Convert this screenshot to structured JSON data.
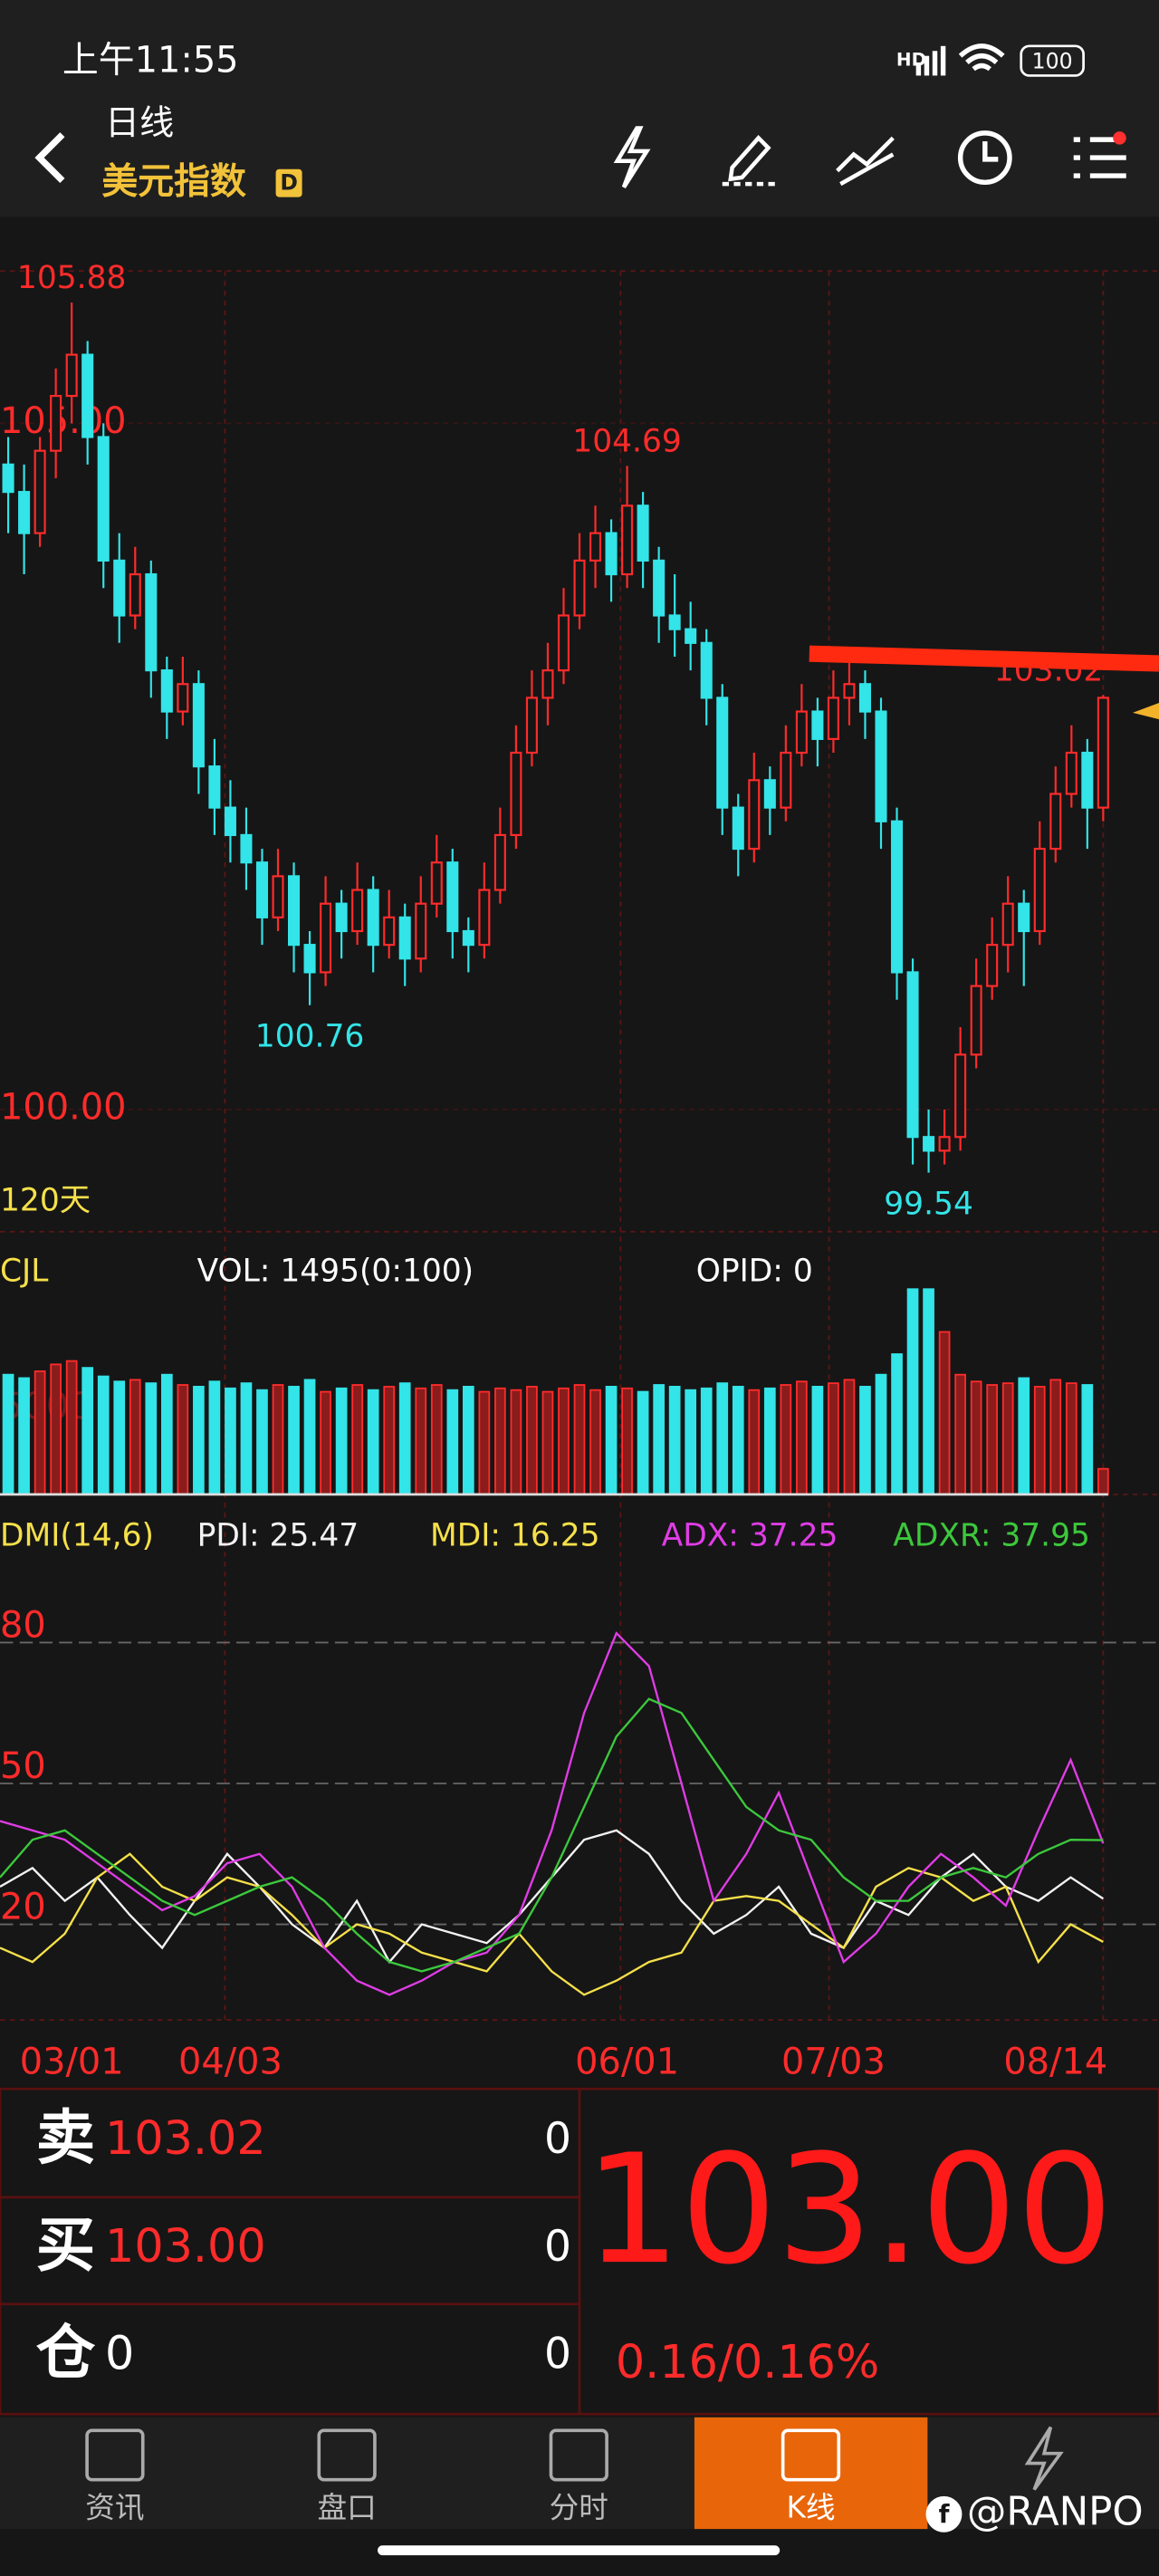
{
  "status_bar": {
    "time": "上午11:55",
    "battery": "100"
  },
  "header": {
    "title": "日线",
    "subtitle": "美元指数",
    "badge": "D"
  },
  "chart_data": [
    {
      "type": "candlestick",
      "period_label": "120天",
      "up_color": "#ff2b2b",
      "down_color": "#33e4e8",
      "categories": [
        null,
        null,
        null,
        null,
        "03/01",
        null,
        null,
        null,
        null,
        null,
        null,
        null,
        null,
        null,
        "04/03",
        null,
        null,
        null,
        null,
        null,
        null,
        null,
        null,
        null,
        null,
        null,
        null,
        null,
        null,
        null,
        null,
        null,
        null,
        null,
        null,
        null,
        null,
        null,
        null,
        "06/01",
        null,
        null,
        null,
        null,
        null,
        null,
        null,
        null,
        null,
        null,
        null,
        null,
        "07/03",
        null,
        null,
        null,
        null,
        null,
        null,
        null,
        null,
        null,
        null,
        null,
        null,
        null,
        "08/14",
        null,
        null,
        null
      ],
      "ohlc": [
        [
          104.7,
          104.9,
          104.2,
          104.5
        ],
        [
          104.5,
          104.7,
          103.9,
          104.2
        ],
        [
          104.2,
          104.9,
          104.1,
          104.8
        ],
        [
          104.8,
          105.4,
          104.6,
          105.2
        ],
        [
          105.2,
          105.88,
          105.0,
          105.5
        ],
        [
          105.5,
          105.6,
          104.7,
          104.9
        ],
        [
          104.9,
          105.0,
          103.8,
          104.0
        ],
        [
          104.0,
          104.2,
          103.4,
          103.6
        ],
        [
          103.6,
          104.1,
          103.5,
          103.9
        ],
        [
          103.9,
          104.0,
          103.0,
          103.2
        ],
        [
          103.2,
          103.3,
          102.7,
          102.9
        ],
        [
          102.9,
          103.3,
          102.8,
          103.1
        ],
        [
          103.1,
          103.2,
          102.3,
          102.5
        ],
        [
          102.5,
          102.7,
          102.0,
          102.2
        ],
        [
          102.2,
          102.4,
          101.8,
          102.0
        ],
        [
          102.0,
          102.2,
          101.6,
          101.8
        ],
        [
          101.8,
          101.9,
          101.2,
          101.4
        ],
        [
          101.4,
          101.9,
          101.3,
          101.7
        ],
        [
          101.7,
          101.8,
          101.0,
          101.2
        ],
        [
          101.2,
          101.3,
          100.76,
          101.0
        ],
        [
          101.0,
          101.7,
          100.9,
          101.5
        ],
        [
          101.5,
          101.6,
          101.1,
          101.3
        ],
        [
          101.3,
          101.8,
          101.2,
          101.6
        ],
        [
          101.6,
          101.7,
          101.0,
          101.2
        ],
        [
          101.2,
          101.6,
          101.1,
          101.4
        ],
        [
          101.4,
          101.5,
          100.9,
          101.1
        ],
        [
          101.1,
          101.7,
          101.0,
          101.5
        ],
        [
          101.5,
          102.0,
          101.4,
          101.8
        ],
        [
          101.8,
          101.9,
          101.1,
          101.3
        ],
        [
          101.3,
          101.4,
          101.0,
          101.2
        ],
        [
          101.2,
          101.8,
          101.1,
          101.6
        ],
        [
          101.6,
          102.2,
          101.5,
          102.0
        ],
        [
          102.0,
          102.8,
          101.9,
          102.6
        ],
        [
          102.6,
          103.2,
          102.5,
          103.0
        ],
        [
          103.0,
          103.4,
          102.8,
          103.2
        ],
        [
          103.2,
          103.8,
          103.1,
          103.6
        ],
        [
          103.6,
          104.2,
          103.5,
          104.0
        ],
        [
          104.0,
          104.4,
          103.8,
          104.2
        ],
        [
          104.2,
          104.3,
          103.7,
          103.9
        ],
        [
          103.9,
          104.69,
          103.8,
          104.4
        ],
        [
          104.4,
          104.5,
          103.8,
          104.0
        ],
        [
          104.0,
          104.1,
          103.4,
          103.6
        ],
        [
          103.6,
          103.9,
          103.3,
          103.5
        ],
        [
          103.5,
          103.7,
          103.2,
          103.4
        ],
        [
          103.4,
          103.5,
          102.8,
          103.0
        ],
        [
          103.0,
          103.1,
          102.0,
          102.2
        ],
        [
          102.2,
          102.3,
          101.7,
          101.9
        ],
        [
          101.9,
          102.6,
          101.8,
          102.4
        ],
        [
          102.4,
          102.5,
          102.0,
          102.2
        ],
        [
          102.2,
          102.8,
          102.1,
          102.6
        ],
        [
          102.6,
          103.1,
          102.5,
          102.9
        ],
        [
          102.9,
          103.0,
          102.5,
          102.7
        ],
        [
          102.7,
          103.2,
          102.6,
          103.0
        ],
        [
          103.0,
          103.3,
          102.8,
          103.1
        ],
        [
          103.1,
          103.2,
          102.7,
          102.9
        ],
        [
          102.9,
          103.0,
          101.9,
          102.1
        ],
        [
          102.1,
          102.2,
          100.8,
          101.0
        ],
        [
          101.0,
          101.1,
          99.6,
          99.8
        ],
        [
          99.8,
          100.0,
          99.54,
          99.7
        ],
        [
          99.7,
          100.0,
          99.6,
          99.8
        ],
        [
          99.8,
          100.6,
          99.7,
          100.4
        ],
        [
          100.4,
          101.1,
          100.3,
          100.9
        ],
        [
          100.9,
          101.4,
          100.8,
          101.2
        ],
        [
          101.2,
          101.7,
          101.0,
          101.5
        ],
        [
          101.5,
          101.6,
          100.9,
          101.3
        ],
        [
          101.3,
          102.1,
          101.2,
          101.9
        ],
        [
          101.9,
          102.5,
          101.8,
          102.3
        ],
        [
          102.3,
          102.8,
          102.2,
          102.6
        ],
        [
          102.6,
          102.7,
          101.9,
          102.2
        ],
        [
          102.2,
          103.02,
          102.1,
          103.0
        ]
      ],
      "extreme_labels": [
        "105.88",
        "104.69",
        "103.02",
        "100.76",
        "99.54"
      ],
      "ylim": [
        99.11,
        106.11
      ],
      "yticks": [
        {
          "value": 105,
          "label": "105.00"
        },
        {
          "value": 100,
          "label": "100.00"
        }
      ]
    },
    {
      "type": "bar",
      "title": "CJL",
      "info": [
        "VOL: 1495(0:100)",
        "OPID: 0"
      ],
      "ylim": [
        0,
        14400
      ],
      "yticks": [
        5000
      ],
      "values": [
        7000,
        6800,
        7200,
        7600,
        7800,
        7400,
        6900,
        6600,
        6700,
        6500,
        7000,
        6400,
        6300,
        6600,
        6200,
        6500,
        6100,
        6400,
        6300,
        6700,
        6000,
        6200,
        6400,
        6100,
        6300,
        6500,
        6200,
        6400,
        6100,
        6300,
        6000,
        6200,
        6100,
        6300,
        6000,
        6200,
        6400,
        6100,
        6300,
        6200,
        6000,
        6400,
        6300,
        6100,
        6200,
        6500,
        6300,
        6100,
        6200,
        6400,
        6600,
        6300,
        6500,
        6700,
        6300,
        7000,
        8200,
        12000,
        12000,
        9500,
        7000,
        6600,
        6400,
        6500,
        6800,
        6300,
        6700,
        6500,
        6400,
        1495
      ]
    },
    {
      "type": "line",
      "title": "DMI(14,6)",
      "ylim": [
        0,
        100
      ],
      "yticks": [
        20,
        50,
        80
      ],
      "series": [
        {
          "name": "PDI: 25.47",
          "color": "#f2f2f2",
          "values": [
            28,
            32,
            25,
            30,
            22,
            15,
            25,
            35,
            28,
            20,
            15,
            25,
            12,
            20,
            18,
            16,
            22,
            30,
            38,
            40,
            35,
            25,
            18,
            22,
            28,
            18,
            15,
            25,
            22,
            30,
            35,
            28,
            25,
            30,
            25.47
          ]
        },
        {
          "name": "MDI: 16.25",
          "color": "#f5e04a",
          "values": [
            15,
            12,
            18,
            30,
            35,
            28,
            25,
            30,
            28,
            22,
            15,
            20,
            18,
            14,
            12,
            10,
            18,
            10,
            5,
            8,
            12,
            14,
            25,
            26,
            25,
            20,
            15,
            28,
            32,
            30,
            25,
            28,
            12,
            20,
            16.25
          ]
        },
        {
          "name": "ADX: 37.25",
          "color": "#e03ce6",
          "values": [
            42,
            40,
            38,
            33,
            28,
            23,
            26,
            33,
            35,
            28,
            15,
            8,
            5,
            8,
            12,
            14,
            22,
            40,
            65,
            82,
            75,
            50,
            25,
            35,
            48,
            30,
            12,
            18,
            28,
            35,
            30,
            24,
            40,
            55,
            37.25
          ]
        },
        {
          "name": "ADXR: 37.95",
          "color": "#3cc83c",
          "values": [
            30,
            38,
            40,
            35,
            30,
            25,
            22,
            25,
            28,
            30,
            25,
            18,
            12,
            10,
            12,
            15,
            18,
            30,
            45,
            60,
            68,
            65,
            55,
            45,
            40,
            38,
            30,
            25,
            25,
            30,
            32,
            30,
            35,
            38,
            37.95
          ]
        }
      ]
    }
  ],
  "quote": {
    "rows": [
      {
        "side": "卖",
        "price": "103.02",
        "qty": "0"
      },
      {
        "side": "买",
        "price": "103.00",
        "qty": "0"
      },
      {
        "side": "仓",
        "price": "0",
        "qty": "0"
      }
    ],
    "last": "103.00",
    "change": "0.16/0.16%"
  },
  "tabs": [
    "资讯",
    "盘口",
    "分时",
    "K线"
  ],
  "watermark": "@RANPO"
}
